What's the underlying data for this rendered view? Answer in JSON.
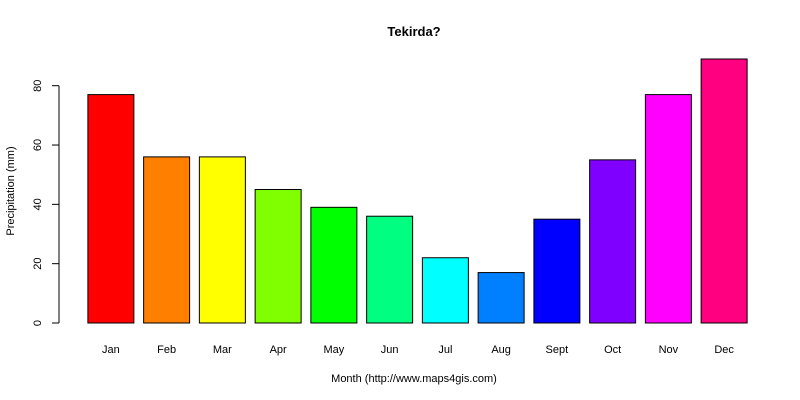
{
  "chart_data": {
    "type": "bar",
    "title": "Tekirda?",
    "xlabel": "Month (http://www.maps4gis.com)",
    "ylabel": "Precipitation (mm)",
    "categories": [
      "Jan",
      "Feb",
      "Mar",
      "Apr",
      "May",
      "Jun",
      "Jul",
      "Aug",
      "Sept",
      "Oct",
      "Nov",
      "Dec"
    ],
    "values": [
      77,
      56,
      56,
      45,
      39,
      36,
      22,
      17,
      35,
      55,
      77,
      89
    ],
    "colors": [
      "#FF0000",
      "#FF8000",
      "#FFFF00",
      "#80FF00",
      "#00FF00",
      "#00FF80",
      "#00FFFF",
      "#0080FF",
      "#0000FF",
      "#8000FF",
      "#FF00FF",
      "#FF0080"
    ],
    "ylim": [
      0,
      89
    ],
    "yticks": [
      0,
      20,
      40,
      60,
      80
    ],
    "grid": false,
    "legend": "none"
  }
}
